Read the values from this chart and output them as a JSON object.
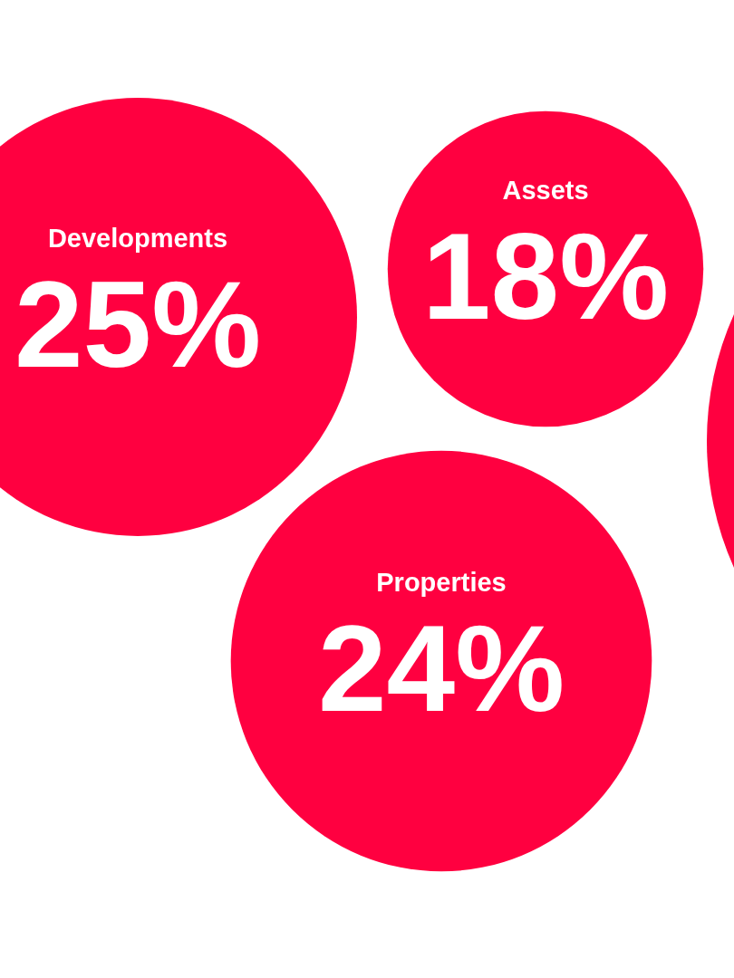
{
  "chart_data": {
    "type": "other",
    "categories": [
      "Developments",
      "Assets",
      "Properties"
    ],
    "values": [
      25,
      18,
      24
    ],
    "value_labels": [
      "25%",
      "18%",
      "24%"
    ],
    "colors": [
      "#ff0040",
      "#ff0040",
      "#ff0040"
    ]
  }
}
